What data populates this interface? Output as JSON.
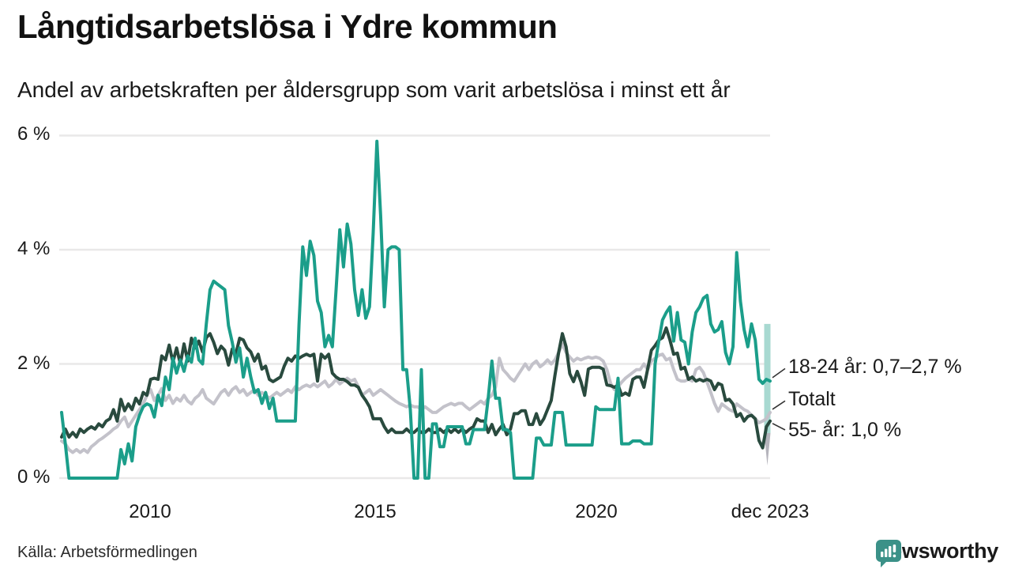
{
  "header": {
    "title": "Långtidsarbetslösa i Ydre kommun",
    "subtitle": "Andel av arbetskraften per åldersgrupp som varit arbetslösa i minst ett år"
  },
  "source": {
    "label": "Källa: Arbetsförmedlingen"
  },
  "branding": {
    "name": "Newsworthy",
    "color": "#3b9188",
    "icon": "bar-chart-speech-bubble"
  },
  "colors": {
    "series_18_24": "#1b9e8a",
    "series_totalt": "#c3c2ca",
    "series_55": "#294a3e",
    "uncertainty_band": "#a8d9d1",
    "uncertainty_tail": "#b5b4bc",
    "gridline": "#e9e8e8",
    "leader_line": "#333333"
  },
  "chart_data": {
    "type": "line",
    "title": "Långtidsarbetslösa i Ydre kommun",
    "subtitle": "Andel av arbetskraften per åldersgrupp som varit arbetslösa i minst ett år",
    "unit": "%",
    "frequency": "monthly",
    "start_month": "2008-01",
    "end_month": "2023-12",
    "grid": true,
    "legend_position": "end-of-line-annotations",
    "y_axis": {
      "ticks": [
        "6 %",
        "4 %",
        "2 %",
        "0 %"
      ],
      "tick_values": [
        6,
        4,
        2,
        0
      ],
      "range": [
        0,
        6.2
      ]
    },
    "x_axis": {
      "ticks": [
        "2010",
        "2015",
        "2020",
        "dec 2023"
      ],
      "tick_years": [
        2010.0,
        2015.0,
        2020.0,
        2023.917
      ],
      "range_years": [
        2008.0,
        2023.917
      ]
    },
    "annotations": [
      {
        "series": "18-24 år",
        "label": "18-24 år: 0,7–2,7 %"
      },
      {
        "series": "Totalt",
        "label": "Totalt"
      },
      {
        "series": "55- år",
        "label": "55- år: 1,0 %"
      }
    ],
    "series": [
      {
        "name": "18-24 år",
        "color": "#1b9e8a",
        "last_value": 1.7,
        "last_value_uncertainty_range": [
          0.7,
          2.7
        ],
        "values": [
          1.15,
          0.6,
          0,
          0,
          0,
          0,
          0,
          0,
          0,
          0,
          0,
          0,
          0,
          0,
          0,
          0,
          0.5,
          0.25,
          0.6,
          0.3,
          0.9,
          1.1,
          1.25,
          1.3,
          1.27,
          1.07,
          1.45,
          1.27,
          1.77,
          1.55,
          2.1,
          1.84,
          2.07,
          1.87,
          2.14,
          2.03,
          2.45,
          2.07,
          2.0,
          2.7,
          3.3,
          3.45,
          3.4,
          3.35,
          3.3,
          2.67,
          2.38,
          2.03,
          2.28,
          1.77,
          2.1,
          1.77,
          1.5,
          1.55,
          1.31,
          1.5,
          1.22,
          1.4,
          1.0,
          1.0,
          1.0,
          1.0,
          1.0,
          1.0,
          2.7,
          4.05,
          3.55,
          4.15,
          3.9,
          3.1,
          2.9,
          2.3,
          2.5,
          2.3,
          3.3,
          4.35,
          3.7,
          4.45,
          4.1,
          3.3,
          2.85,
          3.3,
          2.8,
          3.0,
          4.3,
          5.9,
          4.6,
          3.0,
          4.0,
          4.05,
          4.05,
          4.0,
          1.9,
          1.9,
          1.2,
          0,
          0,
          1.9,
          0,
          0,
          0.95,
          0.95,
          0.55,
          0.55,
          0.9,
          0.9,
          0.9,
          0.9,
          0.9,
          0.6,
          0.6,
          0.85,
          0.85,
          0.85,
          0.85,
          1.4,
          2.05,
          1.4,
          1.4,
          0.85,
          0.85,
          0.8,
          0,
          0,
          0,
          0,
          0,
          0,
          0.7,
          0.7,
          0.58,
          0.58,
          0.58,
          1.15,
          1.15,
          1.15,
          0.58,
          0.58,
          0.58,
          0.58,
          0.58,
          0.58,
          0.58,
          0.58,
          1.25,
          1.2,
          1.2,
          1.2,
          1.2,
          1.2,
          1.75,
          0.6,
          0.6,
          0.6,
          0.65,
          0.65,
          0.65,
          0.6,
          0.6,
          0.6,
          2.0,
          2.4,
          2.77,
          2.9,
          3.0,
          2.4,
          2.9,
          2.42,
          2.38,
          2.0,
          2.56,
          2.9,
          3.0,
          3.15,
          3.2,
          2.7,
          2.56,
          2.6,
          2.74,
          2.2,
          2.0,
          2.3,
          3.95,
          3.1,
          2.6,
          2.3,
          2.7,
          2.42,
          1.73,
          1.66,
          1.73,
          1.7
        ]
      },
      {
        "name": "Totalt",
        "color": "#c3c2ca",
        "last_value": 1.15,
        "values": [
          0.65,
          0.6,
          0.5,
          0.45,
          0.5,
          0.45,
          0.5,
          0.45,
          0.55,
          0.6,
          0.66,
          0.7,
          0.75,
          0.8,
          0.86,
          0.9,
          1.0,
          1.07,
          0.9,
          1.0,
          1.1,
          1.2,
          1.3,
          1.45,
          1.55,
          1.36,
          1.45,
          1.57,
          1.36,
          1.45,
          1.31,
          1.4,
          1.35,
          1.45,
          1.35,
          1.3,
          1.4,
          1.45,
          1.55,
          1.4,
          1.35,
          1.3,
          1.4,
          1.5,
          1.55,
          1.45,
          1.55,
          1.6,
          1.5,
          1.55,
          1.45,
          1.5,
          1.55,
          1.45,
          1.5,
          1.45,
          1.4,
          1.45,
          1.5,
          1.45,
          1.5,
          1.55,
          1.5,
          1.6,
          1.55,
          1.6,
          1.63,
          1.6,
          1.65,
          1.6,
          1.65,
          1.7,
          1.6,
          1.65,
          1.73,
          1.65,
          1.7,
          1.75,
          1.7,
          1.73,
          1.6,
          1.45,
          1.5,
          1.55,
          1.45,
          1.5,
          1.55,
          1.5,
          1.45,
          1.4,
          1.35,
          1.31,
          1.28,
          1.25,
          1.28,
          1.25,
          1.25,
          1.2,
          1.25,
          1.2,
          1.15,
          1.15,
          1.2,
          1.25,
          1.28,
          1.31,
          1.28,
          1.31,
          1.31,
          1.25,
          1.2,
          1.25,
          1.3,
          1.35,
          1.3,
          1.4,
          1.45,
          1.6,
          2.1,
          1.9,
          1.83,
          1.75,
          1.7,
          1.8,
          1.9,
          2.0,
          1.9,
          2.0,
          2.05,
          1.95,
          2.0,
          2.07,
          2.0,
          2.07,
          2.2,
          2.35,
          2.2,
          2.12,
          2.05,
          2.1,
          2.07,
          2.1,
          2.12,
          2.1,
          2.12,
          2.1,
          2.05,
          1.9,
          1.66,
          1.55,
          1.6,
          1.68,
          1.75,
          1.8,
          1.85,
          1.9,
          1.9,
          2.0,
          1.9,
          2.05,
          2.1,
          2.15,
          2.17,
          2.07,
          2.1,
          1.9,
          1.73,
          1.7,
          1.7,
          1.73,
          1.7,
          1.9,
          1.94,
          1.85,
          1.68,
          1.5,
          1.31,
          1.17,
          1.3,
          1.25,
          1.2,
          1.17,
          1.3,
          1.25,
          1.2,
          1.17,
          1.1,
          1.04,
          0.97,
          1.0,
          1.04,
          1.15
        ]
      },
      {
        "name": "55- år",
        "color": "#294a3e",
        "last_value": 1.0,
        "values": [
          0.72,
          0.86,
          0.72,
          0.8,
          0.72,
          0.86,
          0.8,
          0.86,
          0.9,
          0.86,
          0.95,
          0.9,
          1.0,
          1.04,
          1.2,
          1.0,
          1.38,
          1.18,
          1.3,
          1.2,
          1.4,
          1.3,
          1.5,
          1.45,
          1.73,
          1.75,
          1.73,
          2.14,
          2.07,
          2.33,
          2.03,
          2.28,
          2.0,
          2.35,
          2.05,
          2.45,
          2.28,
          2.4,
          2.21,
          2.46,
          2.53,
          2.38,
          2.18,
          2.31,
          2.24,
          1.98,
          2.26,
          2.18,
          2.45,
          2.42,
          2.28,
          2.21,
          2.05,
          2.17,
          1.91,
          1.96,
          1.73,
          1.69,
          1.73,
          1.77,
          1.96,
          2.1,
          2.05,
          2.14,
          2.1,
          2.14,
          2.17,
          2.14,
          2.17,
          1.7,
          2.17,
          2.1,
          2.17,
          1.84,
          1.77,
          1.73,
          1.73,
          1.69,
          1.63,
          1.63,
          1.59,
          1.45,
          1.36,
          1.25,
          1.04,
          1.04,
          1.04,
          0.9,
          0.8,
          0.86,
          0.8,
          0.8,
          0.8,
          0.86,
          0.8,
          0.8,
          0.86,
          0.8,
          0.8,
          0.86,
          0.8,
          0.8,
          0.86,
          0.8,
          0.86,
          0.8,
          0.86,
          0.8,
          0.86,
          0.8,
          0.86,
          0.9,
          1.04,
          1.0,
          1.0,
          0.8,
          0.94,
          0.76,
          0.86,
          0.94,
          0.76,
          0.86,
          1.13,
          1.13,
          1.18,
          1.18,
          0.94,
          0.94,
          1.13,
          0.94,
          1.04,
          1.2,
          1.36,
          1.8,
          2.2,
          2.53,
          2.3,
          1.83,
          1.69,
          1.87,
          1.69,
          1.45,
          1.91,
          1.94,
          1.94,
          1.94,
          1.91,
          1.63,
          1.62,
          1.59,
          1.63,
          1.45,
          1.49,
          1.45,
          1.73,
          1.77,
          1.77,
          1.59,
          1.91,
          2.24,
          2.32,
          2.42,
          2.46,
          2.63,
          2.42,
          2.17,
          2.19,
          1.91,
          1.94,
          1.73,
          1.77,
          1.7,
          1.73,
          1.7,
          1.73,
          1.7,
          1.55,
          1.66,
          1.63,
          1.36,
          1.38,
          1.3,
          1.08,
          1.13,
          1.0,
          1.08,
          1.1,
          1.04,
          0.66,
          0.53,
          0.9,
          1.0
        ]
      }
    ]
  }
}
